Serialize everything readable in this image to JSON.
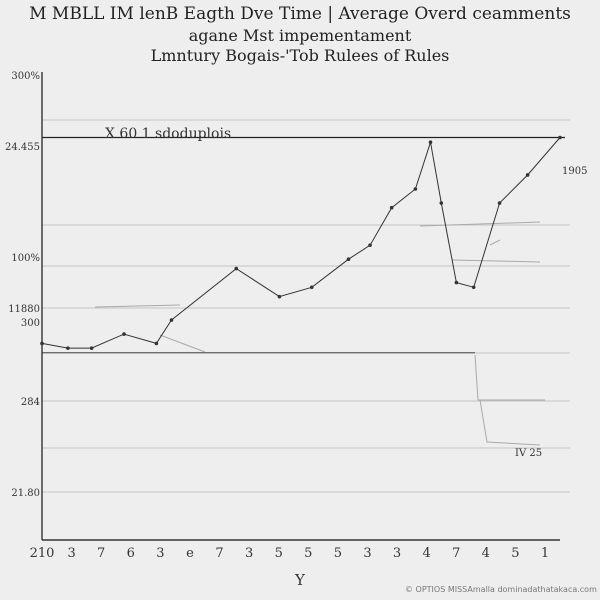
{
  "chart_data": {
    "type": "line",
    "title": "M MBLL IM lenB Eagth Dve Time | Average Overd ceamments",
    "subtitle": "agane Mst impementament",
    "subtitle2": "Lmntury Bogais-'Tob Rulees of Rules",
    "xlabel": "Y",
    "ylabel": "",
    "x_tick_labels": [
      "210",
      "3",
      "7",
      "6",
      "3",
      "e",
      "7",
      "3",
      "5",
      "5",
      "5",
      "3",
      "3",
      "4",
      "7",
      "4",
      "5",
      "1"
    ],
    "y_tick_labels": [
      "300%",
      "24.455",
      "100%",
      "11880",
      "300",
      "284",
      "21.80"
    ],
    "ylim": [
      0,
      100
    ],
    "grid": true,
    "series": [
      {
        "values": [
          {
            "x": 0.0,
            "y": 42
          },
          {
            "x": 0.12,
            "y": 41
          },
          {
            "x": 0.23,
            "y": 41
          },
          {
            "x": 0.38,
            "y": 44
          },
          {
            "x": 0.53,
            "y": 42
          },
          {
            "x": 0.6,
            "y": 47
          },
          {
            "x": 0.9,
            "y": 58
          },
          {
            "x": 1.1,
            "y": 52
          },
          {
            "x": 1.25,
            "y": 54
          },
          {
            "x": 1.42,
            "y": 60
          },
          {
            "x": 1.52,
            "y": 63
          },
          {
            "x": 1.62,
            "y": 71
          },
          {
            "x": 1.73,
            "y": 75
          },
          {
            "x": 1.8,
            "y": 85
          },
          {
            "x": 1.85,
            "y": 72
          },
          {
            "x": 1.92,
            "y": 55
          },
          {
            "x": 2.0,
            "y": 54
          },
          {
            "x": 2.12,
            "y": 72
          },
          {
            "x": 2.25,
            "y": 78
          },
          {
            "x": 2.4,
            "y": 86
          }
        ]
      }
    ],
    "annotations": [
      {
        "text": "X 60 1 sdoduplois"
      },
      {
        "text": "1905"
      },
      {
        "text": "IV 25"
      }
    ],
    "reference_lines": [
      86,
      40
    ]
  },
  "footer": {
    "watermark": "© OPTIOS MISSAmalla dominadathatakaca.com"
  }
}
